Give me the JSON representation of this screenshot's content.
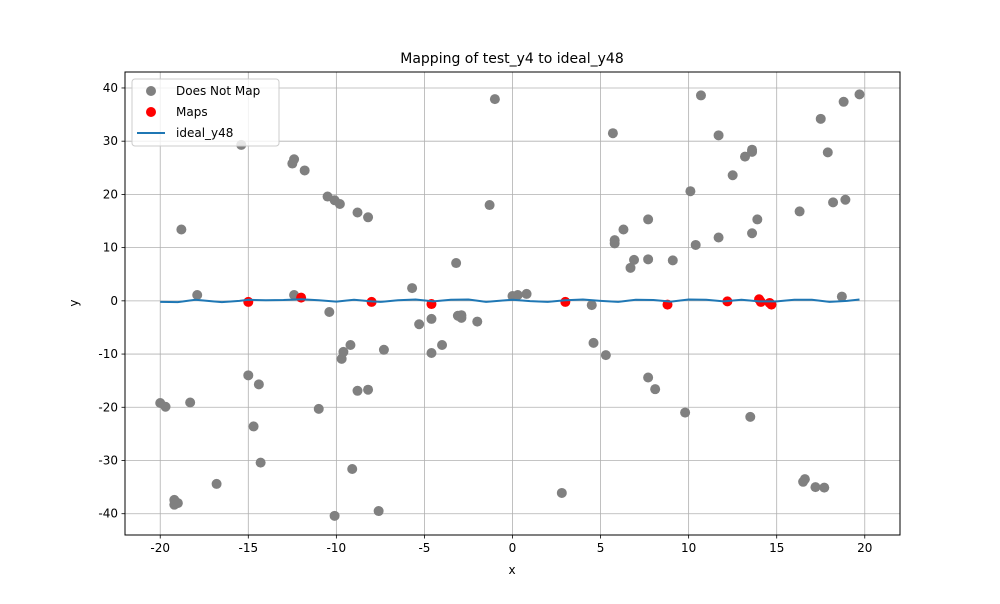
{
  "chart_data": {
    "type": "scatter",
    "title": "Mapping of test_y4 to ideal_y48",
    "xlabel": "x",
    "ylabel": "y",
    "xlim": [
      -22,
      22
    ],
    "ylim": [
      -44,
      43
    ],
    "xticks": [
      -20,
      -15,
      -10,
      -5,
      0,
      5,
      10,
      15,
      20
    ],
    "yticks": [
      -40,
      -30,
      -20,
      -10,
      0,
      10,
      20,
      30,
      40
    ],
    "grid": true,
    "legend_position": "top-left",
    "legend": [
      "Does Not Map",
      "Maps",
      "ideal_y48"
    ],
    "series": [
      {
        "name": "Does Not Map",
        "type": "scatter",
        "color": "#808080",
        "points": [
          [
            -20.0,
            -19.2
          ],
          [
            -19.7,
            -19.9
          ],
          [
            -19.2,
            -37.4
          ],
          [
            -19.2,
            -38.3
          ],
          [
            -19.0,
            -38.0
          ],
          [
            -18.8,
            13.4
          ],
          [
            -18.3,
            -19.1
          ],
          [
            -17.9,
            1.1
          ],
          [
            -16.8,
            -34.4
          ],
          [
            -15.4,
            29.3
          ],
          [
            -15.0,
            -14.0
          ],
          [
            -14.7,
            -23.6
          ],
          [
            -14.4,
            -15.7
          ],
          [
            -14.3,
            -30.4
          ],
          [
            -12.5,
            25.8
          ],
          [
            -12.4,
            26.6
          ],
          [
            -12.4,
            1.1
          ],
          [
            -11.8,
            24.5
          ],
          [
            -11.0,
            -20.3
          ],
          [
            -10.5,
            19.6
          ],
          [
            -10.4,
            -2.1
          ],
          [
            -10.1,
            18.9
          ],
          [
            -10.1,
            -40.4
          ],
          [
            -9.8,
            18.2
          ],
          [
            -9.7,
            -10.9
          ],
          [
            -9.6,
            -9.6
          ],
          [
            -9.2,
            -8.3
          ],
          [
            -9.1,
            -31.6
          ],
          [
            -8.8,
            16.6
          ],
          [
            -8.8,
            -16.9
          ],
          [
            -8.2,
            15.7
          ],
          [
            -8.2,
            -16.7
          ],
          [
            -7.6,
            -39.5
          ],
          [
            -7.3,
            -9.2
          ],
          [
            -5.7,
            2.4
          ],
          [
            -5.3,
            -4.4
          ],
          [
            -4.6,
            -3.4
          ],
          [
            -4.6,
            -9.8
          ],
          [
            -4.0,
            -8.3
          ],
          [
            -3.2,
            7.1
          ],
          [
            -3.1,
            -2.8
          ],
          [
            -2.9,
            -3.2
          ],
          [
            -2.9,
            -2.7
          ],
          [
            -2.0,
            -3.9
          ],
          [
            -1.3,
            18.0
          ],
          [
            -1.0,
            37.9
          ],
          [
            0.0,
            0.9
          ],
          [
            0.3,
            1.1
          ],
          [
            0.8,
            1.3
          ],
          [
            2.8,
            -36.1
          ],
          [
            4.5,
            -0.8
          ],
          [
            4.6,
            -7.9
          ],
          [
            5.3,
            -10.2
          ],
          [
            5.7,
            31.5
          ],
          [
            5.8,
            11.4
          ],
          [
            5.8,
            10.8
          ],
          [
            6.3,
            13.4
          ],
          [
            6.7,
            6.2
          ],
          [
            6.9,
            7.7
          ],
          [
            7.7,
            15.3
          ],
          [
            7.7,
            7.8
          ],
          [
            7.7,
            -14.4
          ],
          [
            8.1,
            -16.6
          ],
          [
            9.1,
            7.6
          ],
          [
            9.8,
            -21.0
          ],
          [
            10.1,
            20.6
          ],
          [
            10.4,
            10.5
          ],
          [
            10.7,
            38.6
          ],
          [
            11.7,
            31.1
          ],
          [
            11.7,
            11.9
          ],
          [
            12.5,
            23.6
          ],
          [
            13.2,
            27.1
          ],
          [
            13.5,
            -21.8
          ],
          [
            13.6,
            28.4
          ],
          [
            13.6,
            28.0
          ],
          [
            13.6,
            12.7
          ],
          [
            13.9,
            15.3
          ],
          [
            16.3,
            16.8
          ],
          [
            16.5,
            -34.0
          ],
          [
            16.6,
            -33.5
          ],
          [
            17.2,
            -35.0
          ],
          [
            17.5,
            34.2
          ],
          [
            17.7,
            -35.1
          ],
          [
            17.9,
            27.9
          ],
          [
            18.2,
            18.5
          ],
          [
            18.7,
            0.8
          ],
          [
            18.8,
            37.4
          ],
          [
            18.9,
            19.0
          ],
          [
            19.7,
            38.8
          ]
        ]
      },
      {
        "name": "Maps",
        "type": "scatter",
        "color": "#ff0000",
        "points": [
          [
            -15.0,
            -0.2
          ],
          [
            -12.0,
            0.6
          ],
          [
            -8.0,
            -0.2
          ],
          [
            -4.6,
            -0.6
          ],
          [
            3.0,
            -0.2
          ],
          [
            8.8,
            -0.7
          ],
          [
            12.2,
            -0.1
          ],
          [
            14.0,
            0.3
          ],
          [
            14.1,
            -0.2
          ],
          [
            14.6,
            -0.4
          ],
          [
            14.7,
            -0.7
          ]
        ]
      },
      {
        "name": "ideal_y48",
        "type": "line",
        "color": "#1f77b4",
        "points": [
          [
            -20.0,
            -0.2
          ],
          [
            -19.0,
            -0.25
          ],
          [
            -18.0,
            0.2
          ],
          [
            -17.0,
            -0.1
          ],
          [
            -16.5,
            -0.25
          ],
          [
            -15.5,
            0.0
          ],
          [
            -15.0,
            0.2
          ],
          [
            -14.0,
            0.1
          ],
          [
            -13.0,
            0.15
          ],
          [
            -12.0,
            0.3
          ],
          [
            -11.0,
            0.1
          ],
          [
            -10.0,
            -0.15
          ],
          [
            -9.0,
            0.2
          ],
          [
            -8.0,
            -0.1
          ],
          [
            -7.5,
            -0.2
          ],
          [
            -6.5,
            0.1
          ],
          [
            -5.5,
            0.25
          ],
          [
            -4.5,
            -0.1
          ],
          [
            -3.5,
            0.2
          ],
          [
            -2.5,
            0.25
          ],
          [
            -1.5,
            -0.2
          ],
          [
            0.0,
            0.2
          ],
          [
            1.0,
            -0.05
          ],
          [
            2.0,
            -0.2
          ],
          [
            3.0,
            0.1
          ],
          [
            4.0,
            0.25
          ],
          [
            5.0,
            0.0
          ],
          [
            6.0,
            -0.2
          ],
          [
            7.0,
            0.2
          ],
          [
            8.0,
            0.15
          ],
          [
            9.0,
            -0.15
          ],
          [
            10.0,
            0.25
          ],
          [
            11.0,
            0.2
          ],
          [
            12.0,
            -0.1
          ],
          [
            13.0,
            0.2
          ],
          [
            14.0,
            -0.1
          ],
          [
            15.0,
            -0.1
          ],
          [
            16.0,
            0.2
          ],
          [
            17.0,
            0.2
          ],
          [
            18.0,
            -0.2
          ],
          [
            19.0,
            0.0
          ],
          [
            19.7,
            0.25
          ]
        ]
      }
    ]
  }
}
